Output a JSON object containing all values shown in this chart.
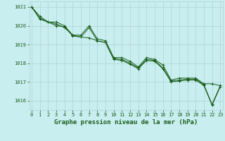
{
  "title": "Graphe pression niveau de la mer (hPa)",
  "background_color": "#c8eef0",
  "grid_color": "#b0d4d4",
  "line_color": "#1a5c1a",
  "series": [
    [
      1021.0,
      1020.5,
      1020.2,
      1020.2,
      1020.0,
      1019.5,
      1019.5,
      1020.0,
      1019.3,
      1019.2,
      1018.3,
      1018.3,
      1018.1,
      1017.8,
      1018.3,
      1018.2,
      1017.9,
      1017.1,
      1017.2,
      1017.2,
      1017.2,
      1016.9,
      1016.9,
      1016.8
    ],
    [
      1021.0,
      1020.4,
      1020.2,
      1020.1,
      1019.9,
      1019.5,
      1019.4,
      1019.9,
      1019.2,
      1019.1,
      1018.25,
      1018.2,
      1018.0,
      1017.75,
      1018.2,
      1018.15,
      1017.75,
      1017.05,
      1017.1,
      1017.15,
      1017.15,
      1016.85,
      1015.8,
      1016.8
    ],
    [
      1021.0,
      1020.35,
      1020.2,
      1020.0,
      1019.95,
      1019.45,
      1019.4,
      1019.35,
      1019.2,
      1019.1,
      1018.2,
      1018.15,
      1017.95,
      1017.7,
      1018.15,
      1018.1,
      1017.7,
      1017.0,
      1017.05,
      1017.1,
      1017.1,
      1016.8,
      1015.75,
      1016.75
    ]
  ],
  "xlim": [
    -0.3,
    23.3
  ],
  "ylim": [
    1015.5,
    1021.3
  ],
  "yticks": [
    1016,
    1017,
    1018,
    1019,
    1020,
    1021
  ],
  "xticks": [
    0,
    1,
    2,
    3,
    4,
    5,
    6,
    7,
    8,
    9,
    10,
    11,
    12,
    13,
    14,
    15,
    16,
    17,
    18,
    19,
    20,
    21,
    22,
    23
  ],
  "tick_fontsize": 5.0,
  "xlabel_fontsize": 6.5,
  "marker": "+",
  "marker_size": 3,
  "line_width": 0.7
}
